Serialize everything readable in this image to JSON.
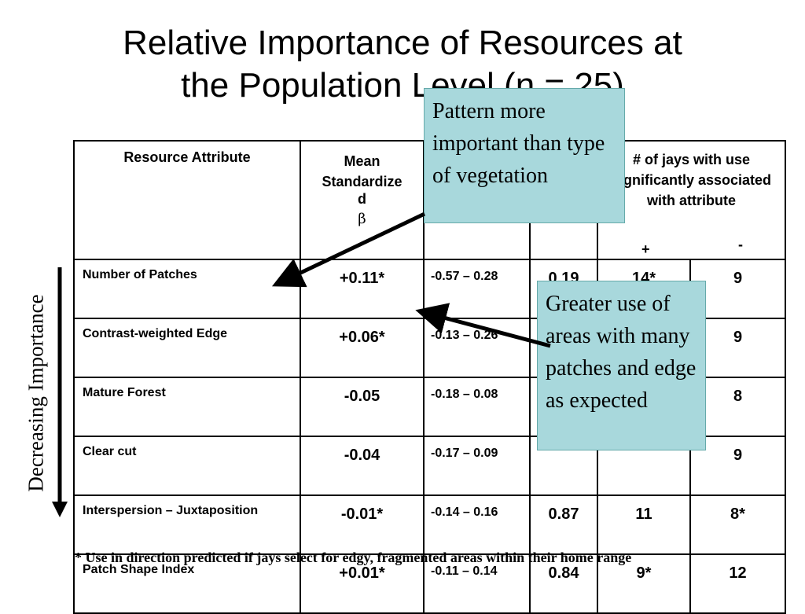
{
  "title": {
    "line1": "Relative Importance of Resources at",
    "line2": "the Population Level (n = 25)"
  },
  "side_label": "Decreasing Importance",
  "table": {
    "headers": {
      "attribute": "Resource Attribute",
      "mean_line1": "Mean",
      "mean_line2": "Standardize",
      "mean_line3": "d",
      "mean_symbol": "β",
      "jays": "# of jays with use significantly associated with attribute",
      "plus": "+",
      "minus": "-"
    },
    "rows": [
      {
        "attribute": "Number of Patches",
        "mean": "+0.11*",
        "ci": "-0.57 – 0.28",
        "p": "0.19",
        "pos": "14*",
        "neg": "9"
      },
      {
        "attribute": "Contrast-weighted Edge",
        "mean": "+0.06*",
        "ci": "-0.13 – 0.26",
        "p": "",
        "pos": "",
        "neg": "9"
      },
      {
        "attribute": "Mature Forest",
        "mean": "-0.05",
        "ci": "-0.18 – 0.08",
        "p": "",
        "pos": "",
        "neg": "8"
      },
      {
        "attribute": "Clear cut",
        "mean": "-0.04",
        "ci": "-0.17 – 0.09",
        "p": "",
        "pos": "",
        "neg": "9"
      },
      {
        "attribute": "Interspersion – Juxtaposition",
        "mean": "-0.01*",
        "ci": "-0.14 – 0.16",
        "p": "0.87",
        "pos": "11",
        "neg": "8*"
      },
      {
        "attribute": "Patch Shape Index",
        "mean": "+0.01*",
        "ci": "-0.11 – 0.14",
        "p": "0.84",
        "pos": "9*",
        "neg": "12"
      }
    ]
  },
  "footnote": "* Use in direction predicted if jays select for edgy, fragmented areas within their home range",
  "callouts": {
    "top": "Pattern more important than type of vegetation",
    "right": "Greater use of areas with many patches and edge as expected"
  },
  "colors": {
    "callout_fill": "#a8d8dc"
  }
}
